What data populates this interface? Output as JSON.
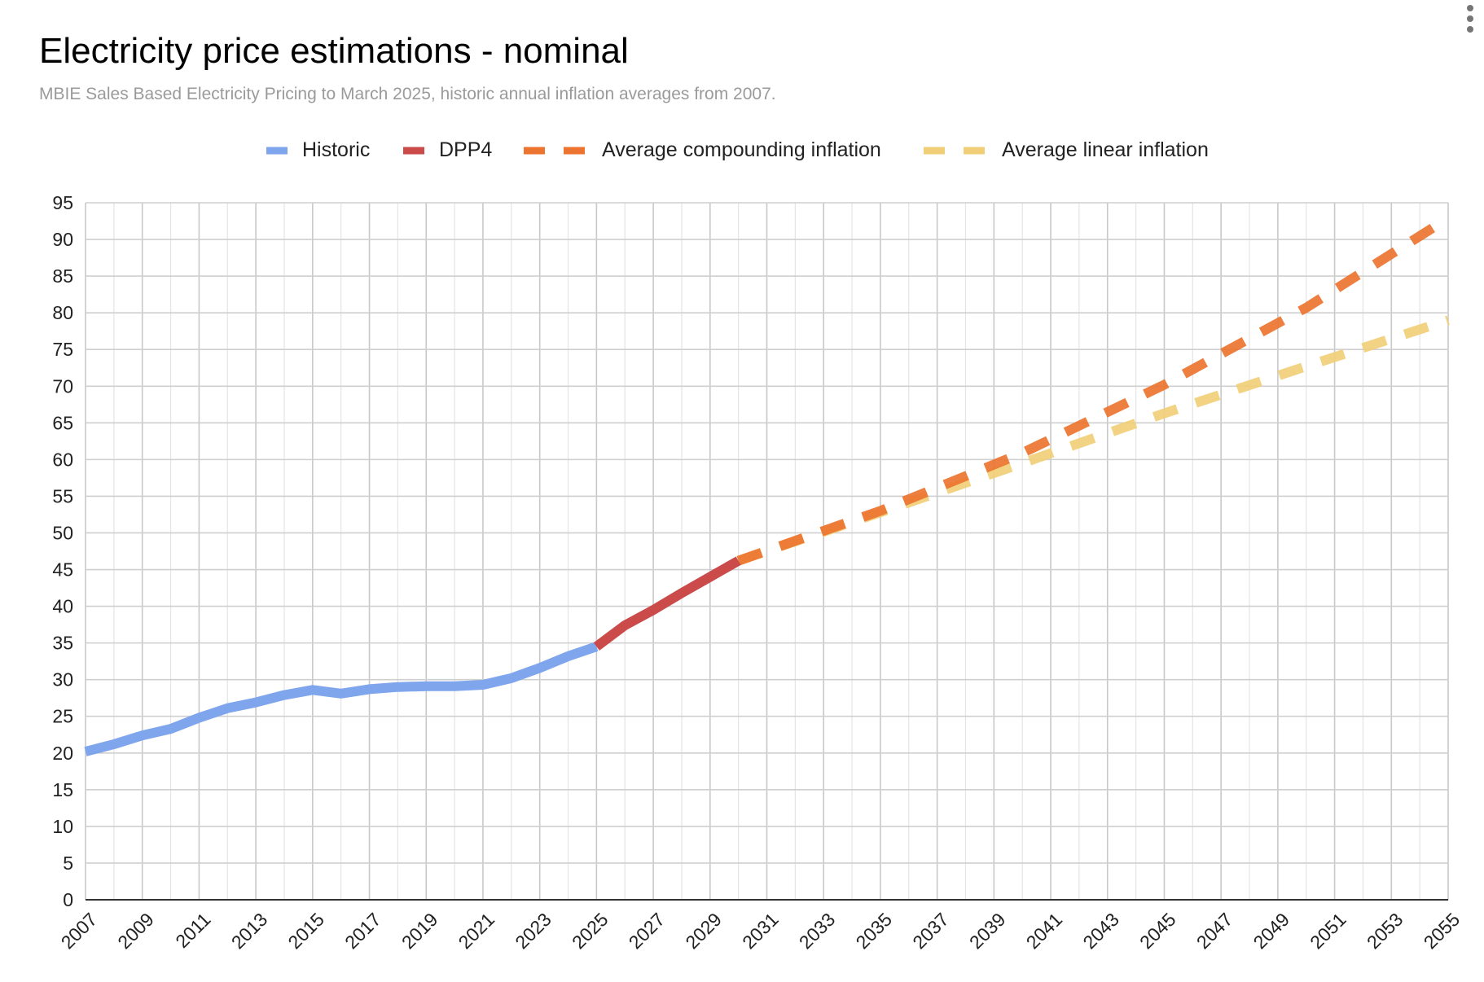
{
  "chart_data": {
    "type": "line",
    "title": "Electricity price estimations - nominal",
    "subtitle": "MBIE Sales Based Electricity Pricing to March 2025, historic annual inflation averages from 2007.",
    "xlabel": "",
    "ylabel": "",
    "xlim": [
      2007,
      2055
    ],
    "ylim": [
      0,
      95
    ],
    "y_ticks": [
      0,
      5,
      10,
      15,
      20,
      25,
      30,
      35,
      40,
      45,
      50,
      55,
      60,
      65,
      70,
      75,
      80,
      85,
      90,
      95
    ],
    "x_ticks": [
      "2007",
      "2009",
      "2011",
      "2013",
      "2015",
      "2017",
      "2019",
      "2021",
      "2023",
      "2025",
      "2027",
      "2029",
      "2031",
      "2033",
      "2035",
      "2037",
      "2039",
      "2041",
      "2043",
      "2045",
      "2047",
      "2049",
      "2051",
      "2053",
      "2055"
    ],
    "grid": true,
    "legend_position": "top",
    "series": [
      {
        "name": "Historic",
        "color": "#7fa5ec",
        "dashed": false,
        "x": [
          2007,
          2008,
          2009,
          2010,
          2011,
          2012,
          2013,
          2014,
          2015,
          2016,
          2017,
          2018,
          2019,
          2020,
          2021,
          2022,
          2023,
          2024,
          2025
        ],
        "y": [
          20.2,
          21.2,
          22.4,
          23.3,
          24.8,
          26.1,
          26.9,
          27.9,
          28.6,
          28.1,
          28.7,
          29.0,
          29.1,
          29.1,
          29.3,
          30.2,
          31.6,
          33.2,
          34.5
        ]
      },
      {
        "name": "DPP4",
        "color": "#cb4b4b",
        "dashed": false,
        "x": [
          2025,
          2026,
          2027,
          2028,
          2029,
          2030
        ],
        "y": [
          34.5,
          37.4,
          39.5,
          41.8,
          44.0,
          46.2
        ]
      },
      {
        "name": "Average compounding inflation",
        "color": "#ec7430",
        "dashed": true,
        "x": [
          2030,
          2035,
          2040,
          2045,
          2050,
          2055
        ],
        "y": [
          46.2,
          53.0,
          60.9,
          70.2,
          80.7,
          92.9
        ]
      },
      {
        "name": "Average linear inflation",
        "color": "#f0cf78",
        "dashed": true,
        "x": [
          2030,
          2035,
          2040,
          2045,
          2050,
          2055
        ],
        "y": [
          46.2,
          52.8,
          59.5,
          66.3,
          72.7,
          79.0
        ]
      }
    ]
  }
}
